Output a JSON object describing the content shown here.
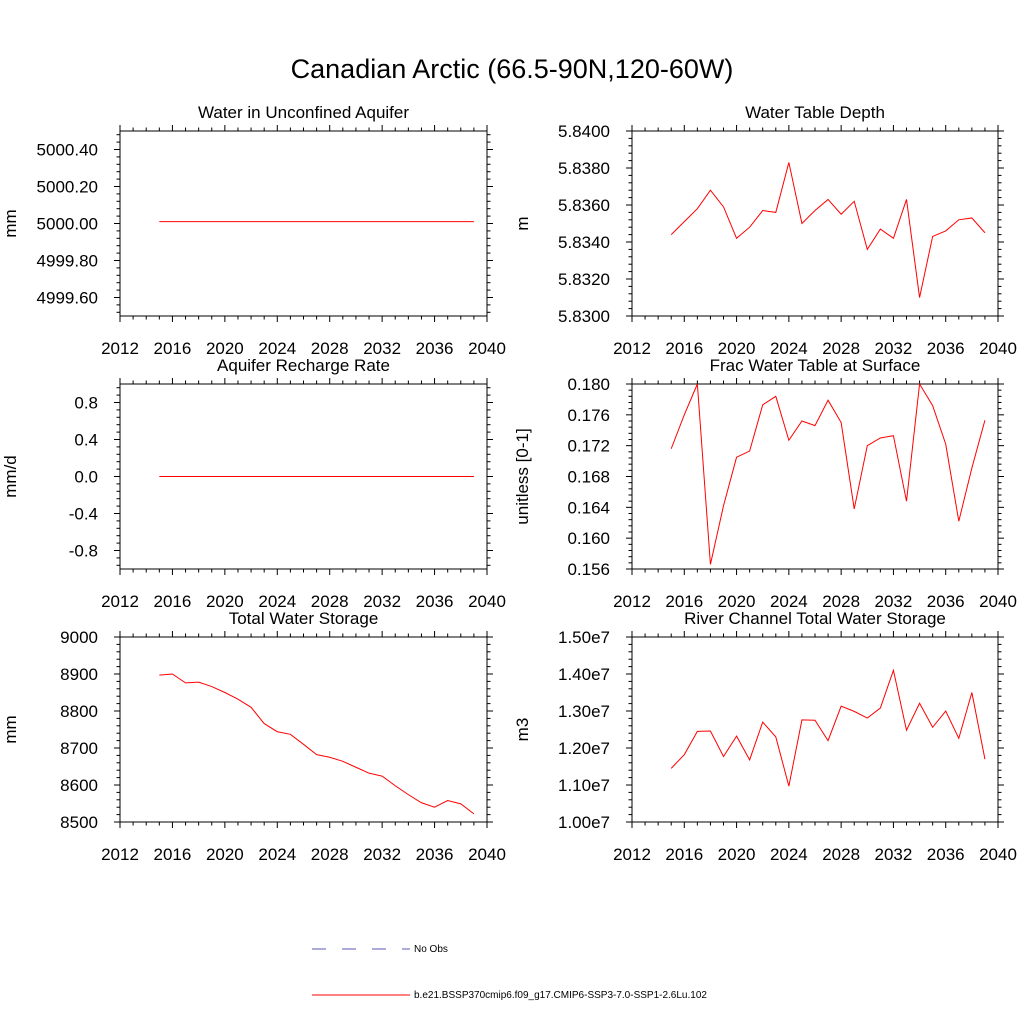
{
  "figure": {
    "title": "Canadian Arctic (66.5-90N,120-60W)",
    "series_color": "#ff0000",
    "obs_color": "#5a5ab4"
  },
  "legend": {
    "obs_label": "No Obs",
    "model_label": "b.e21.BSSP370cmip6.f09_g17.CMIP6-SSP3-7.0-SSP1-2.6Lu.102"
  },
  "chart_data": [
    {
      "type": "line",
      "title": "Water in Unconfined Aquifer",
      "ylabel": "mm",
      "xlim": [
        2012,
        2040
      ],
      "ylim": [
        4999.5,
        5000.5
      ],
      "xticks": [
        2012,
        2016,
        2020,
        2024,
        2028,
        2032,
        2036,
        2040
      ],
      "yticks": [
        4999.6,
        4999.8,
        5000.0,
        5000.2,
        5000.4
      ],
      "ytick_labels": [
        "4999.60",
        "4999.80",
        "5000.00",
        "5000.20",
        "5000.40"
      ],
      "x": [
        2015,
        2016,
        2017,
        2018,
        2019,
        2020,
        2021,
        2022,
        2023,
        2024,
        2025,
        2026,
        2027,
        2028,
        2029,
        2030,
        2031,
        2032,
        2033,
        2034,
        2035,
        2036,
        2037,
        2038,
        2039
      ],
      "y": [
        5000.01,
        5000.01,
        5000.01,
        5000.01,
        5000.01,
        5000.01,
        5000.01,
        5000.01,
        5000.01,
        5000.01,
        5000.01,
        5000.01,
        5000.01,
        5000.01,
        5000.01,
        5000.01,
        5000.01,
        5000.01,
        5000.01,
        5000.01,
        5000.01,
        5000.01,
        5000.01,
        5000.01,
        5000.01
      ]
    },
    {
      "type": "line",
      "title": "Water Table Depth",
      "ylabel": "m",
      "xlim": [
        2012,
        2040
      ],
      "ylim": [
        5.83,
        5.84
      ],
      "xticks": [
        2012,
        2016,
        2020,
        2024,
        2028,
        2032,
        2036,
        2040
      ],
      "yticks": [
        5.83,
        5.832,
        5.834,
        5.836,
        5.838,
        5.84
      ],
      "ytick_labels": [
        "5.8300",
        "5.8320",
        "5.8340",
        "5.8360",
        "5.8380",
        "5.8400"
      ],
      "x": [
        2015,
        2016,
        2017,
        2018,
        2019,
        2020,
        2021,
        2022,
        2023,
        2024,
        2025,
        2026,
        2027,
        2028,
        2029,
        2030,
        2031,
        2032,
        2033,
        2034,
        2035,
        2036,
        2037,
        2038,
        2039
      ],
      "y": [
        5.8344,
        5.8351,
        5.8358,
        5.8368,
        5.8359,
        5.8342,
        5.8348,
        5.8357,
        5.8356,
        5.8383,
        5.835,
        5.8357,
        5.8363,
        5.8355,
        5.8362,
        5.8336,
        5.8347,
        5.8342,
        5.8363,
        5.831,
        5.8343,
        5.8346,
        5.8352,
        5.8353,
        5.8345
      ]
    },
    {
      "type": "line",
      "title": "Aquifer Recharge Rate",
      "ylabel": "mm/d",
      "xlim": [
        2012,
        2040
      ],
      "ylim": [
        -1.0,
        1.0
      ],
      "xticks": [
        2012,
        2016,
        2020,
        2024,
        2028,
        2032,
        2036,
        2040
      ],
      "yticks": [
        -0.8,
        -0.4,
        0.0,
        0.4,
        0.8
      ],
      "ytick_labels": [
        "-0.8",
        "-0.4",
        "0.0",
        "0.4",
        "0.8"
      ],
      "x": [
        2015,
        2016,
        2017,
        2018,
        2019,
        2020,
        2021,
        2022,
        2023,
        2024,
        2025,
        2026,
        2027,
        2028,
        2029,
        2030,
        2031,
        2032,
        2033,
        2034,
        2035,
        2036,
        2037,
        2038,
        2039
      ],
      "y": [
        0.0,
        0.0,
        0.0,
        0.0,
        0.0,
        0.0,
        0.0,
        0.0,
        0.0,
        0.0,
        0.0,
        0.0,
        0.0,
        0.0,
        0.0,
        0.0,
        0.0,
        0.0,
        0.0,
        0.0,
        0.0,
        0.0,
        0.0,
        0.0,
        0.0
      ]
    },
    {
      "type": "line",
      "title": "Frac Water Table at Surface",
      "ylabel": "unitless [0-1]",
      "xlim": [
        2012,
        2040
      ],
      "ylim": [
        0.156,
        0.18
      ],
      "xticks": [
        2012,
        2016,
        2020,
        2024,
        2028,
        2032,
        2036,
        2040
      ],
      "yticks": [
        0.156,
        0.16,
        0.164,
        0.168,
        0.172,
        0.176,
        0.18
      ],
      "ytick_labels": [
        "0.156",
        "0.160",
        "0.164",
        "0.168",
        "0.172",
        "0.176",
        "0.180"
      ],
      "x": [
        2015,
        2016,
        2017,
        2018,
        2019,
        2020,
        2021,
        2022,
        2023,
        2024,
        2025,
        2026,
        2027,
        2028,
        2029,
        2030,
        2031,
        2032,
        2033,
        2034,
        2035,
        2036,
        2037,
        2038,
        2039
      ],
      "y": [
        0.1716,
        0.176,
        0.18,
        0.1566,
        0.1642,
        0.1705,
        0.1713,
        0.1773,
        0.1784,
        0.1727,
        0.1752,
        0.1746,
        0.1779,
        0.175,
        0.1638,
        0.172,
        0.173,
        0.1733,
        0.1648,
        0.18,
        0.1772,
        0.1722,
        0.1622,
        0.1691,
        0.1753
      ]
    },
    {
      "type": "line",
      "title": "Total Water Storage",
      "ylabel": "mm",
      "xlim": [
        2012,
        2040
      ],
      "ylim": [
        8500,
        9000
      ],
      "xticks": [
        2012,
        2016,
        2020,
        2024,
        2028,
        2032,
        2036,
        2040
      ],
      "yticks": [
        8500,
        8600,
        8700,
        8800,
        8900,
        9000
      ],
      "ytick_labels": [
        "8500",
        "8600",
        "8700",
        "8800",
        "8900",
        "9000"
      ],
      "x": [
        2015,
        2016,
        2017,
        2018,
        2019,
        2020,
        2021,
        2022,
        2023,
        2024,
        2025,
        2026,
        2027,
        2028,
        2029,
        2030,
        2031,
        2032,
        2033,
        2034,
        2035,
        2036,
        2037,
        2038,
        2039
      ],
      "y": [
        8897,
        8900,
        8876,
        8878,
        8866,
        8850,
        8832,
        8810,
        8766,
        8744,
        8737,
        8710,
        8682,
        8675,
        8664,
        8648,
        8632,
        8624,
        8598,
        8574,
        8552,
        8540,
        8558,
        8549,
        8522
      ]
    },
    {
      "type": "line",
      "title": "River Channel Total Water Storage",
      "ylabel": "m3",
      "xlim": [
        2012,
        2040
      ],
      "ylim": [
        10000000,
        15000000
      ],
      "xticks": [
        2012,
        2016,
        2020,
        2024,
        2028,
        2032,
        2036,
        2040
      ],
      "yticks": [
        10000000,
        11000000,
        12000000,
        13000000,
        14000000,
        15000000
      ],
      "ytick_labels": [
        "1.00e7",
        "1.10e7",
        "1.20e7",
        "1.30e7",
        "1.40e7",
        "1.50e7"
      ],
      "x": [
        2015,
        2016,
        2017,
        2018,
        2019,
        2020,
        2021,
        2022,
        2023,
        2024,
        2025,
        2026,
        2027,
        2028,
        2029,
        2030,
        2031,
        2032,
        2033,
        2034,
        2035,
        2036,
        2037,
        2038,
        2039
      ],
      "y": [
        11450000,
        11820000,
        12450000,
        12460000,
        11770000,
        12320000,
        11680000,
        12700000,
        12300000,
        10970000,
        12760000,
        12750000,
        12200000,
        13130000,
        12990000,
        12810000,
        13080000,
        14100000,
        12480000,
        13210000,
        12560000,
        13000000,
        12260000,
        13500000,
        11700000
      ]
    }
  ]
}
